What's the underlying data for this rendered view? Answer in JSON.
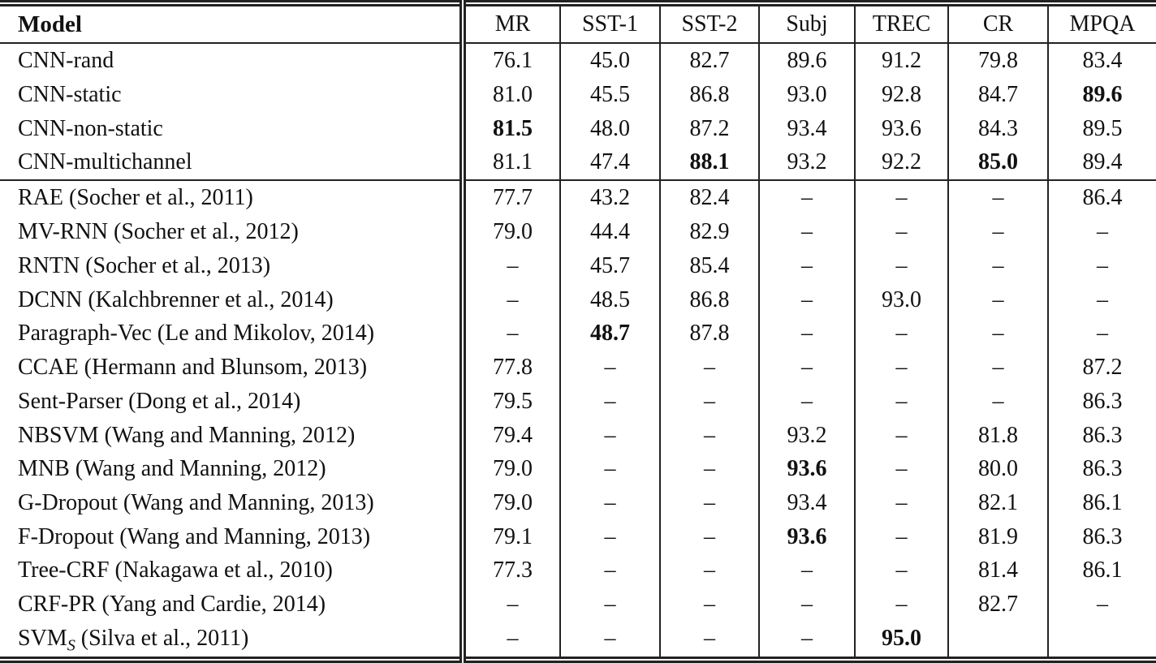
{
  "table": {
    "header": {
      "model_label": "Model",
      "dataset_labels": [
        "MR",
        "SST-1",
        "SST-2",
        "Subj",
        "TREC",
        "CR",
        "MPQA"
      ]
    },
    "dash_glyph": "–",
    "sections": [
      {
        "name": "cnn-models",
        "rows": [
          {
            "model": "CNN-rand",
            "cells": [
              {
                "t": "76.1"
              },
              {
                "t": "45.0"
              },
              {
                "t": "82.7"
              },
              {
                "t": "89.6"
              },
              {
                "t": "91.2"
              },
              {
                "t": "79.8"
              },
              {
                "t": "83.4"
              }
            ]
          },
          {
            "model": "CNN-static",
            "cells": [
              {
                "t": "81.0"
              },
              {
                "t": "45.5"
              },
              {
                "t": "86.8"
              },
              {
                "t": "93.0"
              },
              {
                "t": "92.8"
              },
              {
                "t": "84.7"
              },
              {
                "t": "89.6",
                "b": true
              }
            ]
          },
          {
            "model": "CNN-non-static",
            "cells": [
              {
                "t": "81.5",
                "b": true
              },
              {
                "t": "48.0"
              },
              {
                "t": "87.2"
              },
              {
                "t": "93.4"
              },
              {
                "t": "93.6"
              },
              {
                "t": "84.3"
              },
              {
                "t": "89.5"
              }
            ]
          },
          {
            "model": "CNN-multichannel",
            "cells": [
              {
                "t": "81.1"
              },
              {
                "t": "47.4"
              },
              {
                "t": "88.1",
                "b": true
              },
              {
                "t": "93.2"
              },
              {
                "t": "92.2"
              },
              {
                "t": "85.0",
                "b": true
              },
              {
                "t": "89.4"
              }
            ]
          }
        ]
      },
      {
        "name": "baseline-models",
        "rows": [
          {
            "model": "RAE (Socher et al., 2011)",
            "cells": [
              {
                "t": "77.7"
              },
              {
                "t": "43.2"
              },
              {
                "t": "82.4"
              },
              {
                "t": "–"
              },
              {
                "t": "–"
              },
              {
                "t": "–"
              },
              {
                "t": "86.4"
              }
            ]
          },
          {
            "model": "MV-RNN (Socher et al., 2012)",
            "cells": [
              {
                "t": "79.0"
              },
              {
                "t": "44.4"
              },
              {
                "t": "82.9"
              },
              {
                "t": "–"
              },
              {
                "t": "–"
              },
              {
                "t": "–"
              },
              {
                "t": "–"
              }
            ]
          },
          {
            "model": "RNTN (Socher et al., 2013)",
            "cells": [
              {
                "t": "–"
              },
              {
                "t": "45.7"
              },
              {
                "t": "85.4"
              },
              {
                "t": "–"
              },
              {
                "t": "–"
              },
              {
                "t": "–"
              },
              {
                "t": "–"
              }
            ]
          },
          {
            "model": "DCNN (Kalchbrenner et al., 2014)",
            "cells": [
              {
                "t": "–"
              },
              {
                "t": "48.5"
              },
              {
                "t": "86.8"
              },
              {
                "t": "–"
              },
              {
                "t": "93.0"
              },
              {
                "t": "–"
              },
              {
                "t": "–"
              }
            ]
          },
          {
            "model": "Paragraph-Vec (Le and Mikolov, 2014)",
            "cells": [
              {
                "t": "–"
              },
              {
                "t": "48.7",
                "b": true
              },
              {
                "t": "87.8"
              },
              {
                "t": "–"
              },
              {
                "t": "–"
              },
              {
                "t": "–"
              },
              {
                "t": "–"
              }
            ]
          },
          {
            "model": "CCAE (Hermann and Blunsom, 2013)",
            "cells": [
              {
                "t": "77.8"
              },
              {
                "t": "–"
              },
              {
                "t": "–"
              },
              {
                "t": "–"
              },
              {
                "t": "–"
              },
              {
                "t": "–"
              },
              {
                "t": "87.2"
              }
            ]
          },
          {
            "model": "Sent-Parser (Dong et al., 2014)",
            "cells": [
              {
                "t": "79.5"
              },
              {
                "t": "–"
              },
              {
                "t": "–"
              },
              {
                "t": "–"
              },
              {
                "t": "–"
              },
              {
                "t": "–"
              },
              {
                "t": "86.3"
              }
            ]
          },
          {
            "model": "NBSVM (Wang and Manning, 2012)",
            "cells": [
              {
                "t": "79.4"
              },
              {
                "t": "–"
              },
              {
                "t": "–"
              },
              {
                "t": "93.2"
              },
              {
                "t": "–"
              },
              {
                "t": "81.8"
              },
              {
                "t": "86.3"
              }
            ]
          },
          {
            "model": "MNB (Wang and Manning, 2012)",
            "cells": [
              {
                "t": "79.0"
              },
              {
                "t": "–"
              },
              {
                "t": "–"
              },
              {
                "t": "93.6",
                "b": true
              },
              {
                "t": "–"
              },
              {
                "t": "80.0"
              },
              {
                "t": "86.3"
              }
            ]
          },
          {
            "model": "G-Dropout (Wang and Manning, 2013)",
            "cells": [
              {
                "t": "79.0"
              },
              {
                "t": "–"
              },
              {
                "t": "–"
              },
              {
                "t": "93.4"
              },
              {
                "t": "–"
              },
              {
                "t": "82.1"
              },
              {
                "t": "86.1"
              }
            ]
          },
          {
            "model": "F-Dropout (Wang and Manning, 2013)",
            "cells": [
              {
                "t": "79.1"
              },
              {
                "t": "–"
              },
              {
                "t": "–"
              },
              {
                "t": "93.6",
                "b": true
              },
              {
                "t": "–"
              },
              {
                "t": "81.9"
              },
              {
                "t": "86.3"
              }
            ]
          },
          {
            "model": "Tree-CRF (Nakagawa et al., 2010)",
            "cells": [
              {
                "t": "77.3"
              },
              {
                "t": "–"
              },
              {
                "t": "–"
              },
              {
                "t": "–"
              },
              {
                "t": "–"
              },
              {
                "t": "81.4"
              },
              {
                "t": "86.1"
              }
            ]
          },
          {
            "model": "CRF-PR (Yang and Cardie, 2014)",
            "cells": [
              {
                "t": "–"
              },
              {
                "t": "–"
              },
              {
                "t": "–"
              },
              {
                "t": "–"
              },
              {
                "t": "–"
              },
              {
                "t": "82.7"
              },
              {
                "t": "–"
              }
            ]
          },
          {
            "model": "SVM",
            "model_sub": "S",
            "model_rest": " (Silva et al., 2011)",
            "cells": [
              {
                "t": "–"
              },
              {
                "t": "–"
              },
              {
                "t": "–"
              },
              {
                "t": "–"
              },
              {
                "t": "95.0",
                "b": true
              },
              {
                "t": ""
              },
              {
                "t": ""
              }
            ]
          }
        ]
      }
    ]
  }
}
